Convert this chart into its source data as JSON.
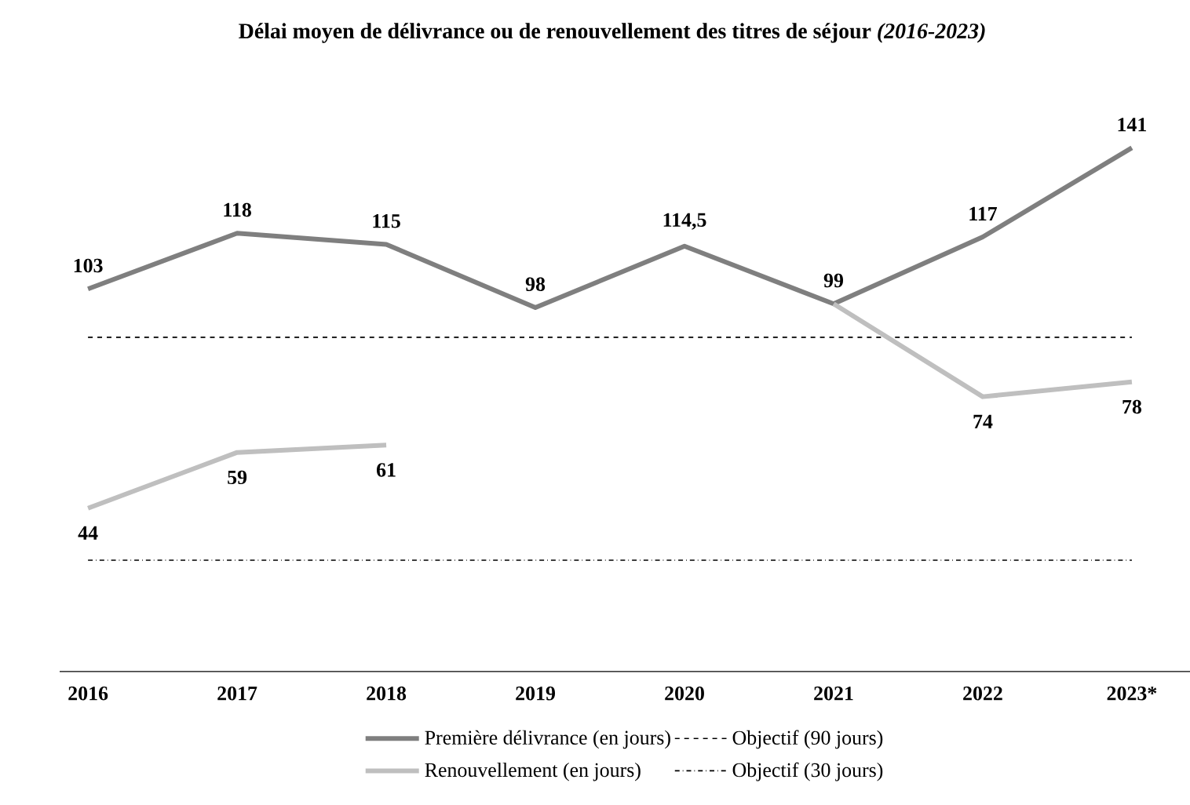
{
  "chart_data": {
    "type": "line",
    "title": "Délai moyen de délivrance ou de renouvellement des titres de séjour *(2016-2023)*",
    "categories": [
      "2016",
      "2017",
      "2018",
      "2019",
      "2020",
      "2021",
      "2022",
      "2023*"
    ],
    "series": [
      {
        "name": "Première délivrance (en jours)",
        "color": "#7f7f7f",
        "values": [
          103,
          118,
          115,
          98,
          114.5,
          99,
          117,
          141
        ],
        "value_labels": [
          "103",
          "118",
          "115",
          "98",
          "114,5",
          "99",
          "117",
          "141"
        ]
      },
      {
        "name": "Renouvellement (en jours)",
        "color": "#bfbfbf",
        "values": [
          44,
          59,
          61,
          null,
          null,
          99,
          74,
          78
        ],
        "value_labels": [
          "44",
          "59",
          "61",
          null,
          null,
          null,
          "74",
          "78"
        ]
      }
    ],
    "ref_lines": [
      {
        "axis": "y",
        "value": 90,
        "label": "Objectif (90 jours)",
        "color": "#000000",
        "line_style": "dashed"
      },
      {
        "axis": "y",
        "value": 30,
        "label": "Objectif (30 jours)",
        "color": "#000000",
        "line_style": "dashdot"
      }
    ],
    "legend": "bottom",
    "marker": "none",
    "tick_labels": "x"
  }
}
